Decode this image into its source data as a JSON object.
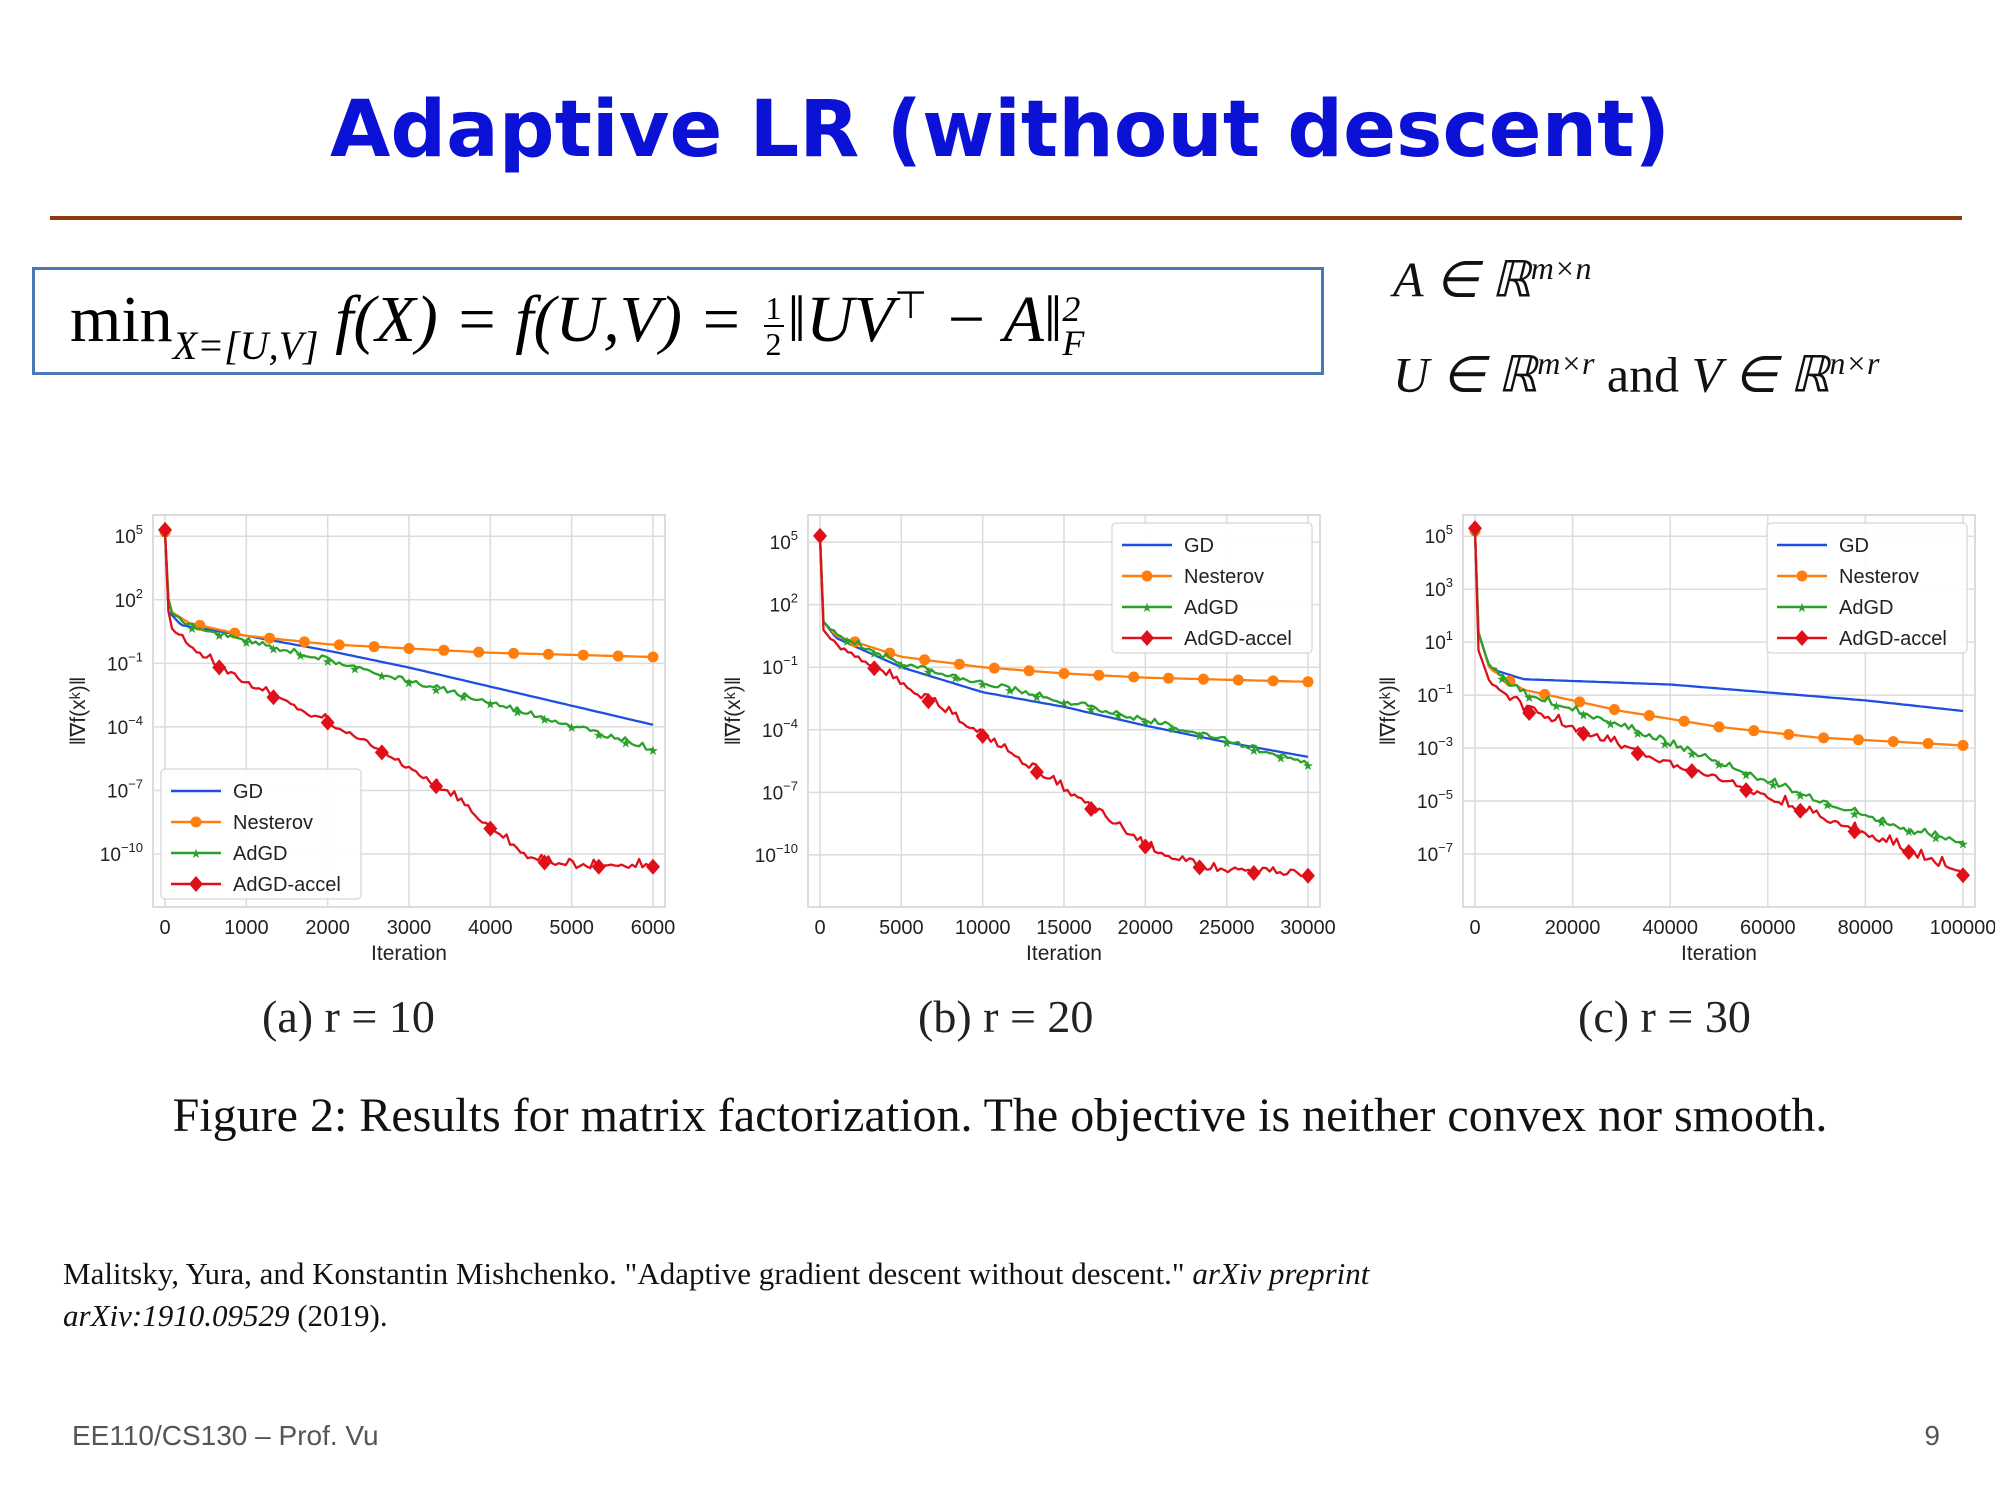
{
  "slide": {
    "title": "Adaptive LR (without descent)",
    "formula": {
      "min": "min",
      "min_sub": "X=[U,V]",
      "body": "f(X) = f(U,V) =",
      "frac_num": "1",
      "frac_den": "2",
      "norm": "‖UV",
      "transpose": "⊤",
      "norm_tail": "− A‖",
      "power": "2",
      "norm_sub": "F"
    },
    "side_line1": "A ∈ ℝ",
    "side_line1_sup": "m×n",
    "side_line2a": "U ∈ ℝ",
    "side_line2a_sup": "m×r",
    "side_line2b": " and ",
    "side_line2c": "V ∈ ℝ",
    "side_line2c_sup": "n×r",
    "figure_caption": "Figure 2:  Results for matrix factorization.  The objective is neither convex nor smooth.",
    "reference_plain": "Malitsky, Yura, and Konstantin Mishchenko. \"Adaptive gradient descent without descent.\" ",
    "reference_italic": "arXiv preprint arXiv:1910.09529",
    "reference_tail": " (2019).",
    "footer_left": "EE110/CS130 – Prof. Vu",
    "footer_right": "9"
  },
  "colors": {
    "GD": "#1f4fe0",
    "Nesterov": "#ff7f0e",
    "AdGD": "#2ca02c",
    "AdGD-accel": "#e0101b"
  },
  "chart_data": [
    {
      "type": "line",
      "caption": "(a) r = 10",
      "xlabel": "Iteration",
      "ylabel": "‖∇f(xᵏ)‖",
      "yscale": "log",
      "xlim": [
        0,
        6000
      ],
      "ylim_exp": [
        -12.5,
        6
      ],
      "xticks": [
        0,
        1000,
        2000,
        3000,
        4000,
        5000,
        6000
      ],
      "xtick_labels": [
        "0",
        "1000",
        "2000",
        "3000",
        "4000",
        "5000",
        "6000"
      ],
      "yticks_exp": [
        5,
        2,
        -1,
        -4,
        -7,
        -10
      ],
      "ytick_labels": [
        "10^5",
        "10^2",
        "10^-1",
        "10^-4",
        "10^-7",
        "10^-10"
      ],
      "legend": "lower-left",
      "series": [
        {
          "name": "GD",
          "x": [
            0,
            30,
            200,
            1000,
            2000,
            3000,
            4000,
            5000,
            6000
          ],
          "y_exp": [
            5.2,
            1.5,
            0.8,
            0.3,
            -0.4,
            -1.2,
            -2.1,
            -3.0,
            -3.9
          ]
        },
        {
          "name": "Nesterov",
          "x": [
            0,
            50,
            300,
            1000,
            2000,
            3000,
            4000,
            5000,
            6000
          ],
          "y_exp": [
            5.2,
            1.5,
            0.9,
            0.3,
            -0.1,
            -0.3,
            -0.5,
            -0.6,
            -0.7
          ]
        },
        {
          "name": "AdGD",
          "x": [
            0,
            50,
            300,
            1000,
            2000,
            3000,
            4000,
            5000,
            6000
          ],
          "y_exp": [
            5.2,
            1.5,
            0.7,
            0.0,
            -0.9,
            -1.9,
            -2.9,
            -4.0,
            -5.1
          ]
        },
        {
          "name": "AdGD-accel",
          "x": [
            0,
            50,
            300,
            1000,
            2000,
            2500,
            3000,
            3500,
            4000,
            4500,
            5000,
            5500,
            6000
          ],
          "y_exp": [
            5.3,
            0.8,
            -0.3,
            -2.0,
            -3.8,
            -4.8,
            -6.0,
            -7.2,
            -8.8,
            -10.3,
            -10.6,
            -10.6,
            -10.6
          ]
        }
      ]
    },
    {
      "type": "line",
      "caption": "(b) r = 20",
      "xlabel": "Iteration",
      "ylabel": "‖∇f(xᵏ)‖",
      "yscale": "log",
      "xlim": [
        0,
        30000
      ],
      "ylim_exp": [
        -12.5,
        6.3
      ],
      "xticks": [
        0,
        5000,
        10000,
        15000,
        20000,
        25000,
        30000
      ],
      "xtick_labels": [
        "0",
        "5000",
        "10000",
        "15000",
        "20000",
        "25000",
        "30000"
      ],
      "yticks_exp": [
        5,
        2,
        -1,
        -4,
        -7,
        -10
      ],
      "ytick_labels": [
        "10^5",
        "10^2",
        "10^-1",
        "10^-4",
        "10^-7",
        "10^-10"
      ],
      "legend": "top-right",
      "series": [
        {
          "name": "GD",
          "x": [
            0,
            200,
            1000,
            5000,
            10000,
            15000,
            20000,
            25000,
            30000
          ],
          "y_exp": [
            5.3,
            1.2,
            0.4,
            -1.0,
            -2.2,
            -2.9,
            -3.8,
            -4.6,
            -5.3
          ]
        },
        {
          "name": "Nesterov",
          "x": [
            0,
            200,
            1000,
            5000,
            10000,
            15000,
            20000,
            25000,
            30000
          ],
          "y_exp": [
            5.3,
            1.2,
            0.5,
            -0.5,
            -1.0,
            -1.3,
            -1.5,
            -1.6,
            -1.7
          ]
        },
        {
          "name": "AdGD",
          "x": [
            0,
            200,
            1000,
            5000,
            10000,
            15000,
            20000,
            25000,
            30000
          ],
          "y_exp": [
            5.3,
            1.2,
            0.5,
            -0.9,
            -1.8,
            -2.7,
            -3.6,
            -4.6,
            -5.7
          ]
        },
        {
          "name": "AdGD-accel",
          "x": [
            0,
            200,
            1000,
            5000,
            10000,
            15000,
            20000,
            22500,
            25000,
            27500,
            30000
          ],
          "y_exp": [
            5.3,
            0.8,
            0.0,
            -1.8,
            -4.3,
            -6.9,
            -9.6,
            -10.5,
            -10.8,
            -10.9,
            -11.0
          ]
        }
      ]
    },
    {
      "type": "line",
      "caption": "(c) r = 30",
      "xlabel": "Iteration",
      "ylabel": "‖∇f(xᵏ)‖",
      "yscale": "log",
      "xlim": [
        0,
        100000
      ],
      "ylim_exp": [
        -9.0,
        5.8
      ],
      "xticks": [
        0,
        20000,
        40000,
        60000,
        80000,
        100000
      ],
      "xtick_labels": [
        "0",
        "20000",
        "40000",
        "60000",
        "80000",
        "100000"
      ],
      "yticks_exp": [
        5,
        3,
        1,
        -1,
        -3,
        -5,
        -7
      ],
      "ytick_labels": [
        "10^5",
        "10^3",
        "10^1",
        "10^-1",
        "10^-3",
        "10^-5",
        "10^-7"
      ],
      "legend": "top-right",
      "series": [
        {
          "name": "GD",
          "x": [
            0,
            500,
            3000,
            10000,
            40000,
            60000,
            80000,
            100000
          ],
          "y_exp": [
            5.2,
            1.5,
            0.0,
            -0.4,
            -0.6,
            -0.9,
            -1.2,
            -1.6
          ]
        },
        {
          "name": "Nesterov",
          "x": [
            0,
            500,
            3000,
            10000,
            30000,
            50000,
            70000,
            100000
          ],
          "y_exp": [
            5.2,
            1.5,
            0.0,
            -0.8,
            -1.6,
            -2.2,
            -2.6,
            -2.9
          ]
        },
        {
          "name": "AdGD",
          "x": [
            0,
            500,
            3000,
            10000,
            30000,
            50000,
            70000,
            90000,
            100000
          ],
          "y_exp": [
            5.2,
            1.5,
            0.0,
            -1.0,
            -2.2,
            -3.6,
            -5.0,
            -6.2,
            -6.6
          ]
        },
        {
          "name": "AdGD-accel",
          "x": [
            0,
            500,
            3000,
            10000,
            30000,
            50000,
            70000,
            90000,
            100000
          ],
          "y_exp": [
            5.3,
            0.8,
            -0.5,
            -1.6,
            -3.0,
            -4.2,
            -5.6,
            -7.0,
            -7.8
          ]
        }
      ]
    }
  ]
}
